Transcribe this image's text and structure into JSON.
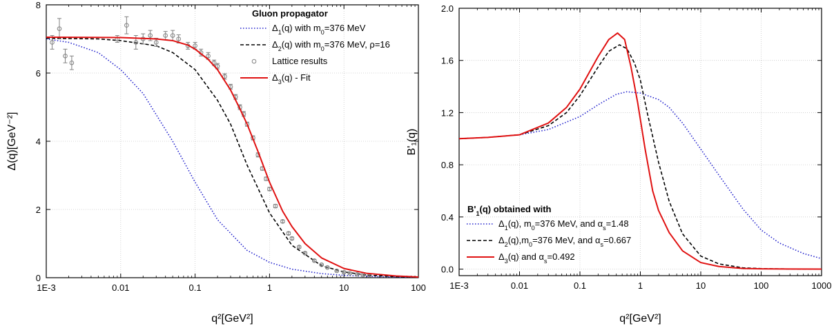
{
  "chart_data": [
    {
      "type": "line",
      "panel": "left",
      "xlabel": "q²[GeV²]",
      "ylabel": "Δ(q)[GeV⁻²]",
      "x_scale": "log",
      "xlim": [
        0.001,
        100
      ],
      "ylim": [
        0,
        8
      ],
      "x_ticks": [
        {
          "value": 0.001,
          "label": "1E-3"
        },
        {
          "value": 0.01,
          "label": "0.01"
        },
        {
          "value": 0.1,
          "label": "0.1"
        },
        {
          "value": 1,
          "label": "1"
        },
        {
          "value": 10,
          "label": "10"
        },
        {
          "value": 100,
          "label": "100"
        }
      ],
      "y_ticks": [
        {
          "value": 0,
          "label": "0"
        },
        {
          "value": 2,
          "label": "2"
        },
        {
          "value": 4,
          "label": "4"
        },
        {
          "value": 6,
          "label": "6"
        },
        {
          "value": 8,
          "label": "8"
        }
      ],
      "grid": true,
      "legend": {
        "title": "Gluon propagator",
        "placement": "top-right",
        "entries": [
          {
            "series": 0,
            "parts": [
              [
                "Δ",
                ""
              ],
              [
                "1",
                "sub"
              ],
              [
                "(q) with m",
                ""
              ],
              [
                "0",
                "sub"
              ],
              [
                "=376 MeV",
                ""
              ]
            ]
          },
          {
            "series": 1,
            "parts": [
              [
                "Δ",
                ""
              ],
              [
                "2",
                "sub"
              ],
              [
                "(q) with m",
                ""
              ],
              [
                "0",
                "sub"
              ],
              [
                "=376 MeV, ρ=16",
                ""
              ]
            ]
          },
          {
            "series": 2,
            "parts": [
              [
                "Lattice results",
                ""
              ]
            ]
          },
          {
            "series": 3,
            "parts": [
              [
                "Δ",
                ""
              ],
              [
                "3",
                "sub"
              ],
              [
                "(q) - Fit",
                ""
              ]
            ]
          }
        ]
      },
      "series": [
        {
          "name": "Δ1(q) with m0=376 MeV",
          "style": "dotted",
          "color": "#1f1fcc",
          "x": [
            0.001,
            0.002,
            0.005,
            0.01,
            0.02,
            0.05,
            0.1,
            0.2,
            0.5,
            1,
            2,
            5,
            10,
            20,
            50,
            100
          ],
          "y": [
            7.0,
            6.9,
            6.6,
            6.1,
            5.4,
            4.0,
            2.8,
            1.7,
            0.8,
            0.45,
            0.25,
            0.12,
            0.07,
            0.04,
            0.02,
            0.01
          ]
        },
        {
          "name": "Δ2(q) with m0=376 MeV, ρ=16",
          "style": "dashed",
          "color": "#000000",
          "x": [
            0.001,
            0.005,
            0.01,
            0.03,
            0.05,
            0.1,
            0.2,
            0.3,
            0.5,
            1,
            2,
            5,
            10,
            20,
            50,
            100
          ],
          "y": [
            7.02,
            7.0,
            6.95,
            6.8,
            6.6,
            6.1,
            5.2,
            4.5,
            3.3,
            1.9,
            0.95,
            0.35,
            0.17,
            0.08,
            0.03,
            0.015
          ]
        },
        {
          "name": "Lattice results",
          "style": "markers",
          "color": "#808080",
          "x": [
            0.0012,
            0.0015,
            0.0018,
            0.0022,
            0.009,
            0.012,
            0.016,
            0.02,
            0.025,
            0.03,
            0.04,
            0.05,
            0.06,
            0.08,
            0.1,
            0.12,
            0.15,
            0.18,
            0.2,
            0.25,
            0.3,
            0.35,
            0.4,
            0.45,
            0.5,
            0.6,
            0.7,
            0.8,
            0.9,
            1.0,
            1.2,
            1.5,
            1.8,
            2.0,
            2.5,
            3.0,
            4.0,
            5.0,
            6.0,
            8.0,
            10.0,
            12.0,
            15.0,
            18.0,
            22.0
          ],
          "y": [
            6.9,
            7.3,
            6.5,
            6.3,
            7.0,
            7.4,
            6.9,
            7.0,
            7.1,
            6.9,
            7.1,
            7.1,
            7.0,
            6.8,
            6.8,
            6.6,
            6.5,
            6.3,
            6.2,
            5.9,
            5.6,
            5.3,
            5.0,
            4.8,
            4.5,
            4.1,
            3.6,
            3.2,
            2.9,
            2.6,
            2.1,
            1.65,
            1.3,
            1.15,
            0.9,
            0.72,
            0.5,
            0.38,
            0.3,
            0.2,
            0.16,
            0.13,
            0.1,
            0.08,
            0.07
          ],
          "err": [
            0.2,
            0.3,
            0.2,
            0.2,
            0.1,
            0.25,
            0.2,
            0.15,
            0.15,
            0.12,
            0.12,
            0.15,
            0.12,
            0.1,
            0.1,
            0.1,
            0.1,
            0.08,
            0.08,
            0.08,
            0.07,
            0.07,
            0.07,
            0.07,
            0.06,
            0.06,
            0.06,
            0.05,
            0.05,
            0.05,
            0.05,
            0.04,
            0.04,
            0.04,
            0.03,
            0.03,
            0.03,
            0.02,
            0.02,
            0.02,
            0.02,
            0.02,
            0.02,
            0.02,
            0.02
          ]
        },
        {
          "name": "Δ3(q) - Fit",
          "style": "solid",
          "color": "#e01010",
          "x": [
            0.001,
            0.01,
            0.03,
            0.05,
            0.08,
            0.1,
            0.15,
            0.2,
            0.3,
            0.4,
            0.5,
            0.7,
            1,
            1.5,
            2,
            3,
            5,
            10,
            20,
            50,
            100
          ],
          "y": [
            7.05,
            7.04,
            7.0,
            6.95,
            6.82,
            6.7,
            6.4,
            6.1,
            5.5,
            4.95,
            4.5,
            3.7,
            2.8,
            1.95,
            1.5,
            1.0,
            0.58,
            0.27,
            0.13,
            0.05,
            0.02
          ]
        }
      ]
    },
    {
      "type": "line",
      "panel": "right",
      "xlabel": "q²[GeV²]",
      "ylabel": "B'₁(q)",
      "x_scale": "log",
      "xlim": [
        0.001,
        1000
      ],
      "ylim": [
        -0.05,
        2.0
      ],
      "x_ticks": [
        {
          "value": 0.001,
          "label": "1E-3"
        },
        {
          "value": 0.01,
          "label": "0.01"
        },
        {
          "value": 0.1,
          "label": "0.1"
        },
        {
          "value": 1,
          "label": "1"
        },
        {
          "value": 10,
          "label": "10"
        },
        {
          "value": 100,
          "label": "100"
        },
        {
          "value": 1000,
          "label": "1000"
        }
      ],
      "y_ticks": [
        {
          "value": 0,
          "label": "0.0"
        },
        {
          "value": 0.4,
          "label": "0.4"
        },
        {
          "value": 0.8,
          "label": "0.8"
        },
        {
          "value": 1.2,
          "label": "1.2"
        },
        {
          "value": 1.6,
          "label": "1.6"
        },
        {
          "value": 2.0,
          "label": "2.0"
        }
      ],
      "grid": true,
      "legend": {
        "title_parts": [
          [
            "B'",
            ""
          ],
          [
            "1",
            "sub"
          ],
          [
            "(q) obtained with",
            ""
          ]
        ],
        "placement": "bottom-left",
        "entries": [
          {
            "series": 0,
            "parts": [
              [
                "Δ",
                ""
              ],
              [
                "1",
                "sub"
              ],
              [
                "(q), m",
                ""
              ],
              [
                "0",
                "sub"
              ],
              [
                "=376 MeV, and α",
                ""
              ],
              [
                "s",
                "sub"
              ],
              [
                "=1.48",
                ""
              ]
            ]
          },
          {
            "series": 1,
            "parts": [
              [
                "Δ",
                ""
              ],
              [
                "2",
                "sub"
              ],
              [
                "(q),m",
                ""
              ],
              [
                "0",
                "sub"
              ],
              [
                "=376 MeV, and α",
                ""
              ],
              [
                "s",
                "sub"
              ],
              [
                "=0.667",
                ""
              ]
            ]
          },
          {
            "series": 2,
            "parts": [
              [
                "Δ",
                ""
              ],
              [
                "3",
                "sub"
              ],
              [
                "(q) and α",
                ""
              ],
              [
                "s",
                "sub"
              ],
              [
                "=0.492",
                ""
              ]
            ]
          }
        ]
      },
      "series": [
        {
          "name": "Δ1(q), m0=376 MeV, and αs=1.48",
          "style": "dotted",
          "color": "#1f1fcc",
          "x": [
            0.001,
            0.003,
            0.01,
            0.03,
            0.1,
            0.2,
            0.4,
            0.6,
            1,
            2,
            3,
            5,
            10,
            20,
            50,
            100,
            200,
            500,
            1000
          ],
          "y": [
            1.0,
            1.01,
            1.03,
            1.07,
            1.17,
            1.26,
            1.34,
            1.36,
            1.35,
            1.3,
            1.24,
            1.12,
            0.92,
            0.72,
            0.46,
            0.3,
            0.2,
            0.12,
            0.08
          ]
        },
        {
          "name": "Δ2(q),m0=376 MeV, and αs=0.667",
          "style": "dashed",
          "color": "#000000",
          "x": [
            0.001,
            0.003,
            0.01,
            0.03,
            0.06,
            0.1,
            0.2,
            0.3,
            0.45,
            0.6,
            0.8,
            1,
            1.3,
            2,
            3,
            5,
            10,
            20,
            50,
            100,
            300,
            1000
          ],
          "y": [
            1.0,
            1.01,
            1.03,
            1.1,
            1.2,
            1.33,
            1.55,
            1.67,
            1.72,
            1.69,
            1.58,
            1.45,
            1.2,
            0.82,
            0.52,
            0.27,
            0.1,
            0.04,
            0.01,
            0.004,
            0.001,
            0.0
          ]
        },
        {
          "name": "Δ3(q) and αs=0.492",
          "style": "solid",
          "color": "#e01010",
          "x": [
            0.001,
            0.003,
            0.01,
            0.03,
            0.06,
            0.1,
            0.2,
            0.3,
            0.42,
            0.55,
            0.7,
            0.9,
            1.2,
            1.6,
            2,
            3,
            5,
            10,
            20,
            50,
            100,
            1000
          ],
          "y": [
            1.0,
            1.01,
            1.03,
            1.12,
            1.24,
            1.38,
            1.63,
            1.76,
            1.81,
            1.76,
            1.55,
            1.28,
            0.92,
            0.6,
            0.45,
            0.28,
            0.14,
            0.05,
            0.02,
            0.005,
            0.002,
            0.0
          ]
        }
      ]
    }
  ]
}
